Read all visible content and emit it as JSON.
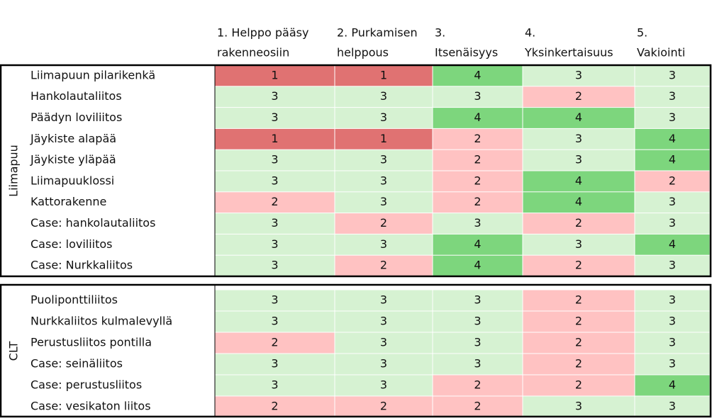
{
  "header": {
    "columns": [
      [
        "1. Helppo pääsy",
        "rakenneosiin"
      ],
      [
        "2. Purkamisen",
        "helppous"
      ],
      [
        "3.",
        "Itsenäisyys"
      ],
      [
        "4.",
        "Yksinkertaisuus"
      ],
      [
        "5.",
        "Vakiointi"
      ]
    ]
  },
  "groups": [
    {
      "label": "Liimapuu",
      "rows": [
        {
          "name": "Liimapuun pilarikenkä",
          "values": [
            1,
            1,
            4,
            3,
            3
          ]
        },
        {
          "name": "Hankolautaliitos",
          "values": [
            3,
            3,
            3,
            2,
            3
          ]
        },
        {
          "name": "Päädyn loviliitos",
          "values": [
            3,
            3,
            4,
            4,
            3
          ]
        },
        {
          "name": "Jäykiste alapää",
          "values": [
            1,
            1,
            2,
            3,
            4
          ]
        },
        {
          "name": "Jäykiste yläpää",
          "values": [
            3,
            3,
            2,
            3,
            4
          ]
        },
        {
          "name": "Liimapuuklossi",
          "values": [
            3,
            3,
            2,
            4,
            2
          ]
        },
        {
          "name": "Kattorakenne",
          "values": [
            2,
            3,
            2,
            4,
            3
          ]
        },
        {
          "name": "Case: hankolautaliitos",
          "values": [
            3,
            2,
            3,
            2,
            3
          ]
        },
        {
          "name": "Case: loviliitos",
          "values": [
            3,
            3,
            4,
            3,
            4
          ]
        },
        {
          "name": "Case: Nurkkaliitos",
          "values": [
            3,
            2,
            4,
            2,
            3
          ]
        }
      ]
    },
    {
      "label": "CLT",
      "rows": [
        {
          "name": "Puoliponttiliitos",
          "values": [
            3,
            3,
            3,
            2,
            3
          ]
        },
        {
          "name": "Nurkkaliitos kulmalevyllä",
          "values": [
            3,
            3,
            3,
            2,
            3
          ]
        },
        {
          "name": "Perustusliitos pontilla",
          "values": [
            2,
            3,
            3,
            2,
            3
          ]
        },
        {
          "name": "Case: seinäliitos",
          "values": [
            3,
            3,
            3,
            2,
            3
          ]
        },
        {
          "name": "Case: perustusliitos",
          "values": [
            3,
            3,
            2,
            2,
            4
          ]
        },
        {
          "name": "Case: vesikaton liitos",
          "values": [
            2,
            2,
            2,
            3,
            3
          ]
        }
      ]
    }
  ],
  "colors": {
    "1": "#e07272",
    "2": "#ffc2c2",
    "3": "#d6f2d2",
    "4": "#7dd67d"
  }
}
